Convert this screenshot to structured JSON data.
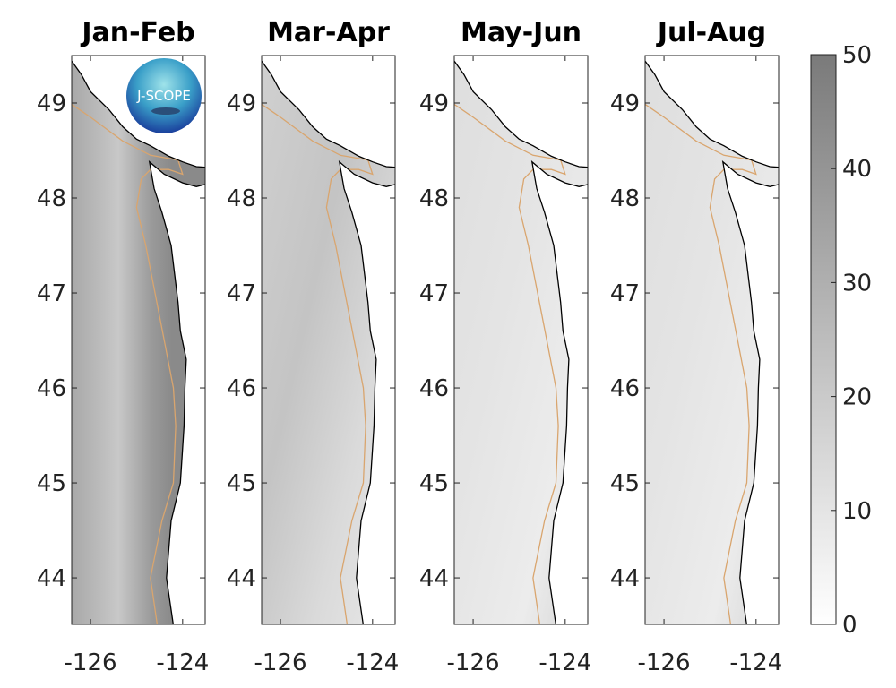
{
  "panels": [
    {
      "title": "Jan-Feb",
      "shade": "dark"
    },
    {
      "title": "Mar-Apr",
      "shade": "medium"
    },
    {
      "title": "May-Jun",
      "shade": "light"
    },
    {
      "title": "Jul-Aug",
      "shade": "light"
    }
  ],
  "map_extent": {
    "lon": [
      -126.41,
      -123.51
    ],
    "lat": [
      43.51,
      49.5
    ]
  },
  "y_ticks": [
    "44",
    "45",
    "46",
    "47",
    "48",
    "49"
  ],
  "y_tick_values": [
    44,
    45,
    46,
    47,
    48,
    49
  ],
  "x_ticks": [
    "-126",
    "-124"
  ],
  "x_tick_values": [
    -126,
    -124
  ],
  "colorbar": {
    "range": [
      0,
      50
    ],
    "ticks": [
      "0",
      "10",
      "20",
      "30",
      "40",
      "50"
    ],
    "tick_values": [
      0,
      10,
      20,
      30,
      40,
      50
    ],
    "color_low": "#ffffff",
    "color_high": "#7a7a7a"
  },
  "logo": {
    "text": "J-SCOPE"
  },
  "colors": {
    "coastline": "#000000",
    "isobath": "#d9a56e",
    "land": "#ffffff"
  }
}
